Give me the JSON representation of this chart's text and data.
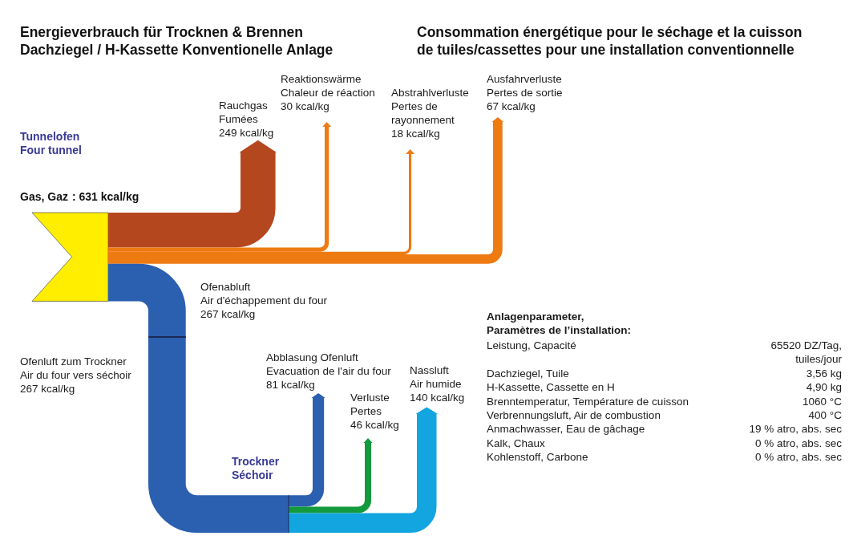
{
  "chart_data": {
    "type": "other",
    "title": "Energieverbrauch für Trocknen & Brennen\nDachziegel / H-Kassette Konventionelle Anlage",
    "subtitle": "Consommation énergétique pour le séchage et la cuisson\nde tuiles/cassettes pour une installation conventionnelle",
    "categories": [
      "Gas, Gaz",
      "Rauchgas\nFumées",
      "Reaktionswärme\nChaleur de réaction",
      "Abstrahlverluste\nPertes de\nrayonnement",
      "Ausfahrverluste\nPertes de sortie",
      "Ofenabluft\nAir d'échappement du four",
      "Ofenluft zum Trockner\nAir du four vers séchoir",
      "Abblasung Ofenluft\nEvacuation de l'air du four",
      "Verluste\nPertes",
      "Nassluft\nAir humide"
    ],
    "values": [
      631,
      249,
      30,
      18,
      67,
      267,
      267,
      81,
      46,
      140
    ],
    "value_labels": [
      ": 631 kcal/kg",
      "249 kcal/kg",
      "30 kcal/kg",
      "18 kcal/kg",
      "67 kcal/kg",
      "267 kcal/kg",
      "267 kcal/kg",
      "81 kcal/kg",
      "46 kcal/kg",
      "140 kcal/kg"
    ],
    "colors": [
      "#ffee00",
      "#b5471f",
      "#ee7a12",
      "#ee7a12",
      "#ee7a12",
      "#2b5fb0",
      "#2b5fb0",
      "#2b5fb0",
      "#129a3c",
      "#12a5df"
    ],
    "annotations": [
      "Tunnelofen\nFour tunnel",
      "Trockner\nSéchoir",
      "Anlagenparameter,\nParamètres de l’installation:",
      "Leistung, Capacité\t65520 DZ/Tag,\ntuiles/jour",
      "Dachziegel, Tuile\t3,56 kg",
      "H-Kassette, Cassette en H\t4,90 kg",
      "Brenntemperatur, Température de cuisson\t1060 °C",
      "Verbrennungsluft, Air de combustion\t400 °C",
      "Anmachwasser, Eau de gâchage\t19 % atro, abs. sec",
      "Kalk, Chaux\t0 % atro, abs. sec",
      "Kohlenstoff, Carbone\t0 % atro, abs. sec"
    ]
  }
}
